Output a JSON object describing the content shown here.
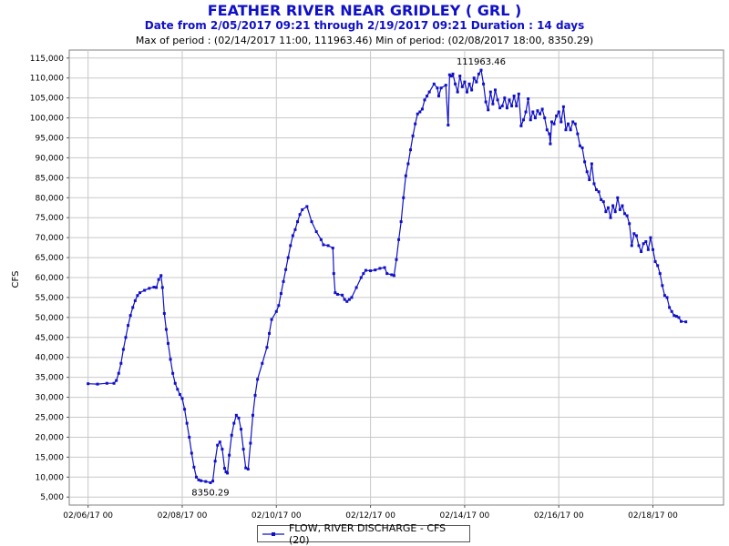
{
  "chart_data": {
    "type": "line",
    "title": "FEATHER RIVER NEAR GRIDLEY ( GRL )",
    "subtitle": "Date from 2/05/2017 09:21 through 2/19/2017 09:21 Duration : 14 days",
    "stats_text": "Max of period : (02/14/2017 11:00, 111963.46)  Min of period: (02/08/2017 18:00,  8350.29)",
    "ylabel": "CFS",
    "xlabel": "",
    "ylim": [
      3000,
      117000
    ],
    "yticks": [
      5000,
      10000,
      15000,
      20000,
      25000,
      30000,
      35000,
      40000,
      45000,
      50000,
      55000,
      60000,
      65000,
      70000,
      75000,
      80000,
      85000,
      90000,
      95000,
      100000,
      105000,
      110000,
      115000
    ],
    "ytick_labels": [
      "5,000",
      "10,000",
      "15,000",
      "20,000",
      "25,000",
      "30,000",
      "35,000",
      "40,000",
      "45,000",
      "50,000",
      "55,000",
      "60,000",
      "65,000",
      "70,000",
      "75,000",
      "80,000",
      "85,000",
      "90,000",
      "95,000",
      "100,000",
      "105,000",
      "110,000",
      "115,000"
    ],
    "xlim_days": [
      5.6,
      19.5
    ],
    "xticks_days": [
      6,
      8,
      10,
      12,
      14,
      16,
      18
    ],
    "xtick_labels": [
      "02/06/17 00",
      "02/08/17 00",
      "02/10/17 00",
      "02/12/17 00",
      "02/14/17 00",
      "02/16/17 00",
      "02/18/17 00"
    ],
    "grid": true,
    "legend_position": "bottom-center",
    "series": [
      {
        "name": "FLOW, RIVER DISCHARGE - CFS (20)",
        "color": "#1010c8",
        "points": [
          [
            6.0,
            33400
          ],
          [
            6.2,
            33300
          ],
          [
            6.4,
            33500
          ],
          [
            6.55,
            33500
          ],
          [
            6.6,
            34200
          ],
          [
            6.65,
            36000
          ],
          [
            6.7,
            38500
          ],
          [
            6.75,
            42000
          ],
          [
            6.8,
            45000
          ],
          [
            6.85,
            48000
          ],
          [
            6.9,
            50500
          ],
          [
            6.95,
            52500
          ],
          [
            7.0,
            54200
          ],
          [
            7.05,
            55500
          ],
          [
            7.1,
            56200
          ],
          [
            7.2,
            56800
          ],
          [
            7.3,
            57300
          ],
          [
            7.4,
            57600
          ],
          [
            7.45,
            57500
          ],
          [
            7.5,
            59500
          ],
          [
            7.55,
            60500
          ],
          [
            7.58,
            57500
          ],
          [
            7.62,
            51000
          ],
          [
            7.66,
            47000
          ],
          [
            7.7,
            43500
          ],
          [
            7.75,
            39500
          ],
          [
            7.8,
            36000
          ],
          [
            7.85,
            33500
          ],
          [
            7.9,
            32000
          ],
          [
            7.95,
            30700
          ],
          [
            8.0,
            29700
          ],
          [
            8.05,
            27000
          ],
          [
            8.1,
            23500
          ],
          [
            8.15,
            20000
          ],
          [
            8.2,
            16000
          ],
          [
            8.25,
            12500
          ],
          [
            8.3,
            10000
          ],
          [
            8.35,
            9300
          ],
          [
            8.4,
            9100
          ],
          [
            8.5,
            8900
          ],
          [
            8.6,
            8600
          ],
          [
            8.65,
            9000
          ],
          [
            8.7,
            14000
          ],
          [
            8.75,
            18000
          ],
          [
            8.8,
            18800
          ],
          [
            8.85,
            17000
          ],
          [
            8.9,
            12200
          ],
          [
            8.93,
            11300
          ],
          [
            8.96,
            11000
          ],
          [
            9.0,
            15500
          ],
          [
            9.05,
            20500
          ],
          [
            9.1,
            23500
          ],
          [
            9.15,
            25500
          ],
          [
            9.2,
            24800
          ],
          [
            9.25,
            22000
          ],
          [
            9.3,
            17000
          ],
          [
            9.35,
            12300
          ],
          [
            9.4,
            12000
          ],
          [
            9.45,
            18500
          ],
          [
            9.5,
            25500
          ],
          [
            9.55,
            30500
          ],
          [
            9.6,
            34500
          ],
          [
            9.7,
            38500
          ],
          [
            9.8,
            42500
          ],
          [
            9.85,
            46000
          ],
          [
            9.9,
            49500
          ],
          [
            10.0,
            51500
          ],
          [
            10.05,
            53000
          ],
          [
            10.1,
            56000
          ],
          [
            10.15,
            59000
          ],
          [
            10.2,
            62000
          ],
          [
            10.25,
            65000
          ],
          [
            10.3,
            68000
          ],
          [
            10.35,
            70500
          ],
          [
            10.4,
            72000
          ],
          [
            10.45,
            74000
          ],
          [
            10.5,
            75800
          ],
          [
            10.55,
            77000
          ],
          [
            10.65,
            77800
          ],
          [
            10.75,
            74000
          ],
          [
            10.85,
            71500
          ],
          [
            10.95,
            69500
          ],
          [
            11.0,
            68200
          ],
          [
            11.1,
            68000
          ],
          [
            11.2,
            67400
          ],
          [
            11.22,
            61000
          ],
          [
            11.25,
            56200
          ],
          [
            11.3,
            55800
          ],
          [
            11.4,
            55600
          ],
          [
            11.45,
            54500
          ],
          [
            11.5,
            54000
          ],
          [
            11.55,
            54500
          ],
          [
            11.6,
            55000
          ],
          [
            11.7,
            57500
          ],
          [
            11.8,
            60000
          ],
          [
            11.85,
            61000
          ],
          [
            11.9,
            61800
          ],
          [
            12.0,
            61700
          ],
          [
            12.1,
            61900
          ],
          [
            12.2,
            62300
          ],
          [
            12.3,
            62500
          ],
          [
            12.35,
            61000
          ],
          [
            12.45,
            60700
          ],
          [
            12.5,
            60500
          ],
          [
            12.55,
            64500
          ],
          [
            12.6,
            69500
          ],
          [
            12.65,
            74000
          ],
          [
            12.7,
            80000
          ],
          [
            12.75,
            85500
          ],
          [
            12.8,
            88500
          ],
          [
            12.85,
            92000
          ],
          [
            12.9,
            95500
          ],
          [
            12.95,
            98500
          ],
          [
            13.0,
            101000
          ],
          [
            13.05,
            101500
          ],
          [
            13.1,
            102200
          ],
          [
            13.15,
            104500
          ],
          [
            13.2,
            105500
          ],
          [
            13.25,
            106500
          ],
          [
            13.35,
            108500
          ],
          [
            13.42,
            107500
          ],
          [
            13.45,
            105500
          ],
          [
            13.5,
            107500
          ],
          [
            13.6,
            108200
          ],
          [
            13.65,
            98200
          ],
          [
            13.68,
            110800
          ],
          [
            13.72,
            110500
          ],
          [
            13.75,
            111000
          ],
          [
            13.8,
            108500
          ],
          [
            13.85,
            106500
          ],
          [
            13.9,
            110500
          ],
          [
            13.95,
            107800
          ],
          [
            14.0,
            109000
          ],
          [
            14.05,
            106500
          ],
          [
            14.1,
            108500
          ],
          [
            14.15,
            107000
          ],
          [
            14.2,
            110000
          ],
          [
            14.25,
            109000
          ],
          [
            14.3,
            111000
          ],
          [
            14.35,
            111963
          ],
          [
            14.4,
            108500
          ],
          [
            14.45,
            104000
          ],
          [
            14.5,
            102000
          ],
          [
            14.55,
            106500
          ],
          [
            14.6,
            103500
          ],
          [
            14.65,
            107000
          ],
          [
            14.7,
            104500
          ],
          [
            14.75,
            102500
          ],
          [
            14.8,
            103000
          ],
          [
            14.85,
            105000
          ],
          [
            14.9,
            102500
          ],
          [
            14.95,
            104500
          ],
          [
            15.0,
            103000
          ],
          [
            15.05,
            105500
          ],
          [
            15.1,
            103000
          ],
          [
            15.15,
            106000
          ],
          [
            15.2,
            98000
          ],
          [
            15.25,
            99500
          ],
          [
            15.3,
            101500
          ],
          [
            15.35,
            104800
          ],
          [
            15.4,
            99500
          ],
          [
            15.45,
            101500
          ],
          [
            15.5,
            100000
          ],
          [
            15.55,
            101800
          ],
          [
            15.6,
            101000
          ],
          [
            15.65,
            102200
          ],
          [
            15.7,
            100000
          ],
          [
            15.75,
            97000
          ],
          [
            15.8,
            96000
          ],
          [
            15.82,
            93500
          ],
          [
            15.85,
            99000
          ],
          [
            15.9,
            98500
          ],
          [
            15.95,
            100500
          ],
          [
            16.0,
            101500
          ],
          [
            16.05,
            99000
          ],
          [
            16.1,
            102800
          ],
          [
            16.15,
            97000
          ],
          [
            16.2,
            98500
          ],
          [
            16.25,
            97000
          ],
          [
            16.3,
            99000
          ],
          [
            16.35,
            98500
          ],
          [
            16.4,
            96000
          ],
          [
            16.45,
            93000
          ],
          [
            16.5,
            92500
          ],
          [
            16.55,
            89000
          ],
          [
            16.6,
            86500
          ],
          [
            16.65,
            84500
          ],
          [
            16.7,
            88500
          ],
          [
            16.75,
            83500
          ],
          [
            16.8,
            82000
          ],
          [
            16.85,
            81500
          ],
          [
            16.9,
            79500
          ],
          [
            16.95,
            79000
          ],
          [
            17.0,
            76500
          ],
          [
            17.05,
            77500
          ],
          [
            17.1,
            75000
          ],
          [
            17.15,
            78000
          ],
          [
            17.2,
            76500
          ],
          [
            17.25,
            80000
          ],
          [
            17.3,
            77000
          ],
          [
            17.35,
            78000
          ],
          [
            17.4,
            76000
          ],
          [
            17.45,
            75500
          ],
          [
            17.5,
            73500
          ],
          [
            17.55,
            68000
          ],
          [
            17.6,
            71000
          ],
          [
            17.65,
            70500
          ],
          [
            17.7,
            68000
          ],
          [
            17.75,
            66500
          ],
          [
            17.8,
            68500
          ],
          [
            17.85,
            69000
          ],
          [
            17.9,
            67000
          ],
          [
            17.95,
            70000
          ],
          [
            18.0,
            67000
          ],
          [
            18.05,
            64000
          ],
          [
            18.1,
            63000
          ],
          [
            18.15,
            61000
          ],
          [
            18.2,
            58000
          ],
          [
            18.25,
            55500
          ],
          [
            18.3,
            55000
          ],
          [
            18.35,
            52500
          ],
          [
            18.4,
            51500
          ],
          [
            18.45,
            50500
          ],
          [
            18.5,
            50300
          ],
          [
            18.55,
            50000
          ],
          [
            18.6,
            49000
          ],
          [
            18.7,
            48900
          ]
        ]
      }
    ],
    "annotations": [
      {
        "text": "111963.46",
        "x": 14.35,
        "y": 111963,
        "position": "above"
      },
      {
        "text": "8350.29",
        "x": 8.6,
        "y": 8600,
        "position": "below"
      }
    ]
  },
  "legend": {
    "label": "FLOW, RIVER DISCHARGE - CFS (20)",
    "color": "#1010c8"
  }
}
